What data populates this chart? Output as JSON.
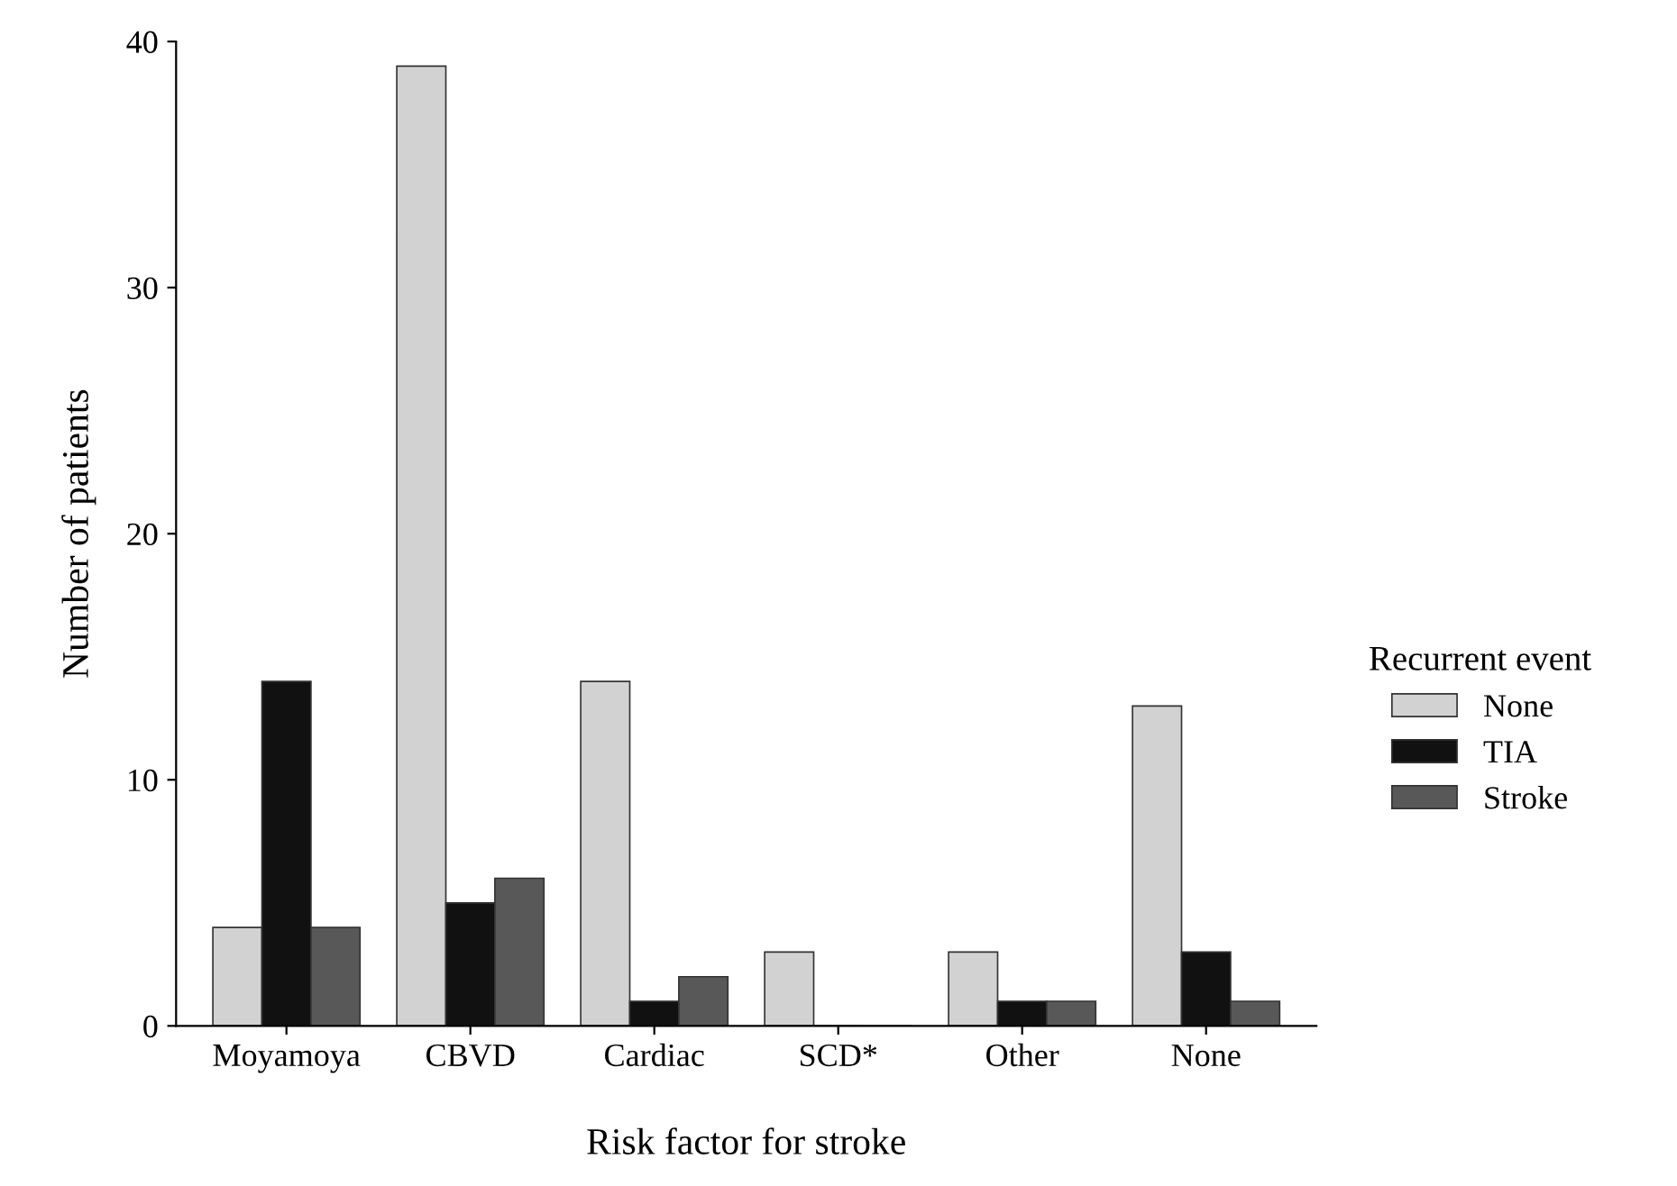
{
  "chart_data": {
    "type": "bar",
    "xlabel": "Risk factor for stroke",
    "ylabel": "Number of patients",
    "legend_title": "Recurrent event",
    "categories": [
      "Moyamoya",
      "CBVD",
      "Cardiac",
      "SCD*",
      "Other",
      "None"
    ],
    "series": [
      {
        "name": "None",
        "color": "#d2d2d2",
        "values": [
          4,
          39,
          14,
          3,
          3,
          13
        ]
      },
      {
        "name": "TIA",
        "color": "#111111",
        "values": [
          14,
          5,
          1,
          0,
          1,
          3
        ]
      },
      {
        "name": "Stroke",
        "color": "#585858",
        "values": [
          4,
          6,
          2,
          0,
          1,
          1
        ]
      }
    ],
    "ylim": [
      0,
      40
    ],
    "yticks": [
      0,
      10,
      20,
      30,
      40
    ],
    "grid": false,
    "legend": "right"
  }
}
